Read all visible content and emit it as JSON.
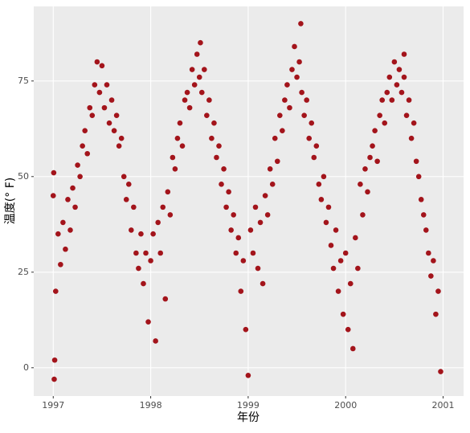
{
  "chart_data": {
    "type": "scatter",
    "x_label": "年份",
    "y_label": "温度(° F)",
    "color": "#a3141b",
    "grid": true,
    "xlim": [
      1996.8,
      2001.21
    ],
    "ylim": [
      -7.4,
      94.5
    ],
    "xticks": [
      1997,
      1998,
      1999,
      2000,
      2001
    ],
    "yticks": [
      0,
      25,
      50,
      75
    ],
    "x": [
      1997.0,
      1997.025,
      1997.05,
      1997.075,
      1997.1,
      1997.125,
      1997.15,
      1997.175,
      1997.2,
      1997.225,
      1997.25,
      1997.275,
      1997.3,
      1997.325,
      1997.35,
      1997.375,
      1997.4,
      1997.425,
      1997.45,
      1997.475,
      1997.5,
      1997.525,
      1997.55,
      1997.575,
      1997.6,
      1997.625,
      1997.65,
      1997.675,
      1997.7,
      1997.725,
      1997.75,
      1997.775,
      1997.8,
      1997.825,
      1997.85,
      1997.875,
      1997.9,
      1997.925,
      1997.95,
      1997.975,
      1997.01,
      1997.005,
      1997.015,
      1998.0,
      1998.025,
      1998.05,
      1998.075,
      1998.1,
      1998.125,
      1998.15,
      1998.175,
      1998.2,
      1998.225,
      1998.25,
      1998.275,
      1998.3,
      1998.325,
      1998.35,
      1998.375,
      1998.4,
      1998.425,
      1998.45,
      1998.475,
      1998.5,
      1998.525,
      1998.55,
      1998.575,
      1998.6,
      1998.625,
      1998.65,
      1998.675,
      1998.7,
      1998.725,
      1998.75,
      1998.775,
      1998.8,
      1998.825,
      1998.85,
      1998.875,
      1998.9,
      1998.925,
      1998.95,
      1998.975,
      1998.51,
      1999.0,
      1999.025,
      1999.05,
      1999.075,
      1999.1,
      1999.125,
      1999.15,
      1999.175,
      1999.2,
      1999.225,
      1999.25,
      1999.275,
      1999.3,
      1999.325,
      1999.35,
      1999.375,
      1999.4,
      1999.425,
      1999.45,
      1999.475,
      1999.5,
      1999.525,
      1999.55,
      1999.575,
      1999.6,
      1999.625,
      1999.65,
      1999.675,
      1999.7,
      1999.725,
      1999.75,
      1999.775,
      1999.8,
      1999.825,
      1999.85,
      1999.875,
      1999.9,
      1999.925,
      1999.95,
      1999.975,
      1999.54,
      2000.0,
      2000.025,
      2000.05,
      2000.075,
      2000.1,
      2000.125,
      2000.15,
      2000.175,
      2000.2,
      2000.225,
      2000.25,
      2000.275,
      2000.3,
      2000.325,
      2000.35,
      2000.375,
      2000.4,
      2000.425,
      2000.45,
      2000.475,
      2000.5,
      2000.525,
      2000.55,
      2000.575,
      2000.6,
      2000.625,
      2000.65,
      2000.675,
      2000.7,
      2000.725,
      2000.75,
      2000.775,
      2000.8,
      2000.825,
      2000.85,
      2000.875,
      2000.9,
      2000.925,
      2000.95,
      2000.975,
      2000.6
    ],
    "values": [
      45,
      20,
      35,
      27,
      38,
      31,
      44,
      36,
      47,
      42,
      53,
      50,
      58,
      62,
      56,
      68,
      66,
      74,
      80,
      72,
      79,
      68,
      74,
      64,
      70,
      62,
      66,
      58,
      60,
      50,
      44,
      48,
      36,
      42,
      30,
      26,
      35,
      22,
      30,
      12,
      -3,
      51,
      2,
      28,
      35,
      7,
      38,
      30,
      42,
      18,
      46,
      40,
      55,
      52,
      60,
      64,
      58,
      70,
      72,
      68,
      78,
      74,
      82,
      76,
      72,
      78,
      66,
      70,
      60,
      64,
      55,
      58,
      48,
      52,
      42,
      46,
      36,
      40,
      30,
      34,
      20,
      28,
      10,
      85,
      -2,
      36,
      30,
      42,
      26,
      38,
      22,
      45,
      40,
      52,
      48,
      60,
      54,
      66,
      62,
      70,
      74,
      68,
      78,
      84,
      76,
      80,
      72,
      66,
      70,
      60,
      64,
      55,
      58,
      48,
      44,
      50,
      38,
      42,
      32,
      26,
      36,
      20,
      28,
      14,
      90,
      30,
      10,
      22,
      5,
      34,
      26,
      48,
      40,
      52,
      46,
      55,
      58,
      62,
      54,
      66,
      70,
      64,
      72,
      76,
      70,
      80,
      74,
      78,
      72,
      76,
      66,
      70,
      60,
      64,
      54,
      50,
      44,
      40,
      36,
      30,
      24,
      28,
      14,
      20,
      -1,
      82
    ]
  }
}
